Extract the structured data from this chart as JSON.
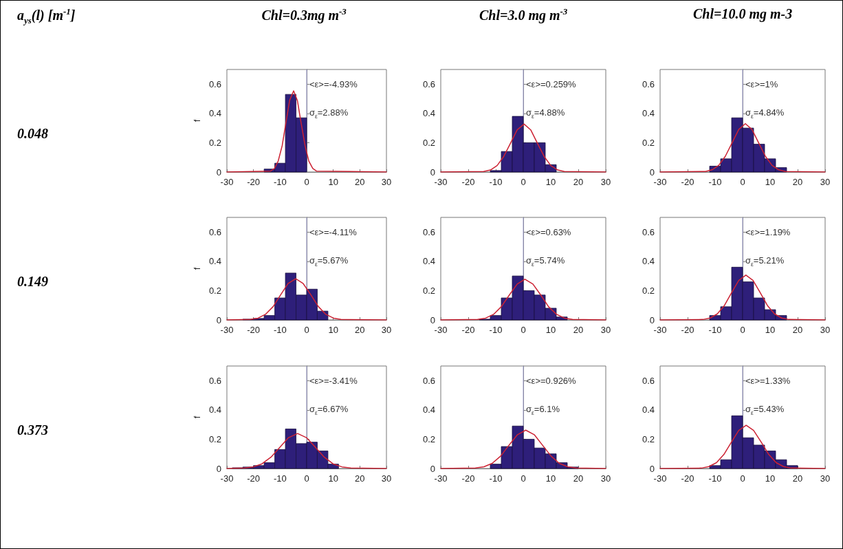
{
  "chart_data": [
    {
      "type": "other",
      "title": "a$_{ys}$(l) [m$^{-1}$]"
    },
    {
      "type": "histogram",
      "title": "Chl=0.3mg m$^{-3}$",
      "ylabel": "f",
      "annotations": [
        "<ε>=-4.93%",
        "σ$_{ε}$=2.88%",
        "0.048"
      ],
      "xlim": [
        -30,
        30
      ],
      "xticks": [
        -30,
        -20,
        -10,
        0,
        10,
        20,
        30
      ],
      "ylim": [
        0,
        0.7
      ],
      "yticks": [
        0,
        0.2,
        0.4,
        0.6
      ],
      "ref_lines": [
        {
          "axis": "x",
          "value": 0,
          "color": "#9a9acc"
        }
      ],
      "series": [
        {
          "type": "histogram",
          "color": "#2e1f7a",
          "bins": [
            -16,
            -12,
            -8,
            -4,
            0
          ],
          "values": [
            0.02,
            0.06,
            0.53,
            0.37
          ]
        },
        {
          "type": "line",
          "color": "#cc2233",
          "x": [
            -30,
            -13.6,
            -12.1,
            -10.7,
            -9.2,
            -7.8,
            -6.4,
            -4.9,
            -3.5,
            -2.1,
            -0.6,
            0.8,
            2.3,
            3.7,
            30
          ],
          "values": [
            0,
            0.006,
            0.024,
            0.075,
            0.18,
            0.336,
            0.489,
            0.554,
            0.489,
            0.336,
            0.18,
            0.075,
            0.024,
            0.006,
            0
          ]
        }
      ]
    },
    {
      "type": "histogram",
      "title": "Chl=3.0 mg m$^{-3}$",
      "annotations": [
        "<ε>=0.259%",
        "σ$_{ε}$=4.88%"
      ],
      "xlim": [
        -30,
        30
      ],
      "xticks": [
        -30,
        -20,
        -10,
        0,
        10,
        20,
        30
      ],
      "ylim": [
        0,
        0.7
      ],
      "yticks": [
        0,
        0.2,
        0.4,
        0.6
      ],
      "ref_lines": [
        {
          "axis": "x",
          "value": 0,
          "color": "#9a9acc"
        }
      ],
      "series": [
        {
          "type": "histogram",
          "color": "#2e1f7a",
          "bins": [
            -12,
            -8,
            -4,
            0,
            4,
            8,
            12
          ],
          "values": [
            0.01,
            0.14,
            0.38,
            0.2,
            0.2,
            0.05
          ]
        },
        {
          "type": "line",
          "color": "#cc2233",
          "x": [
            -30,
            -14.4,
            -11.9,
            -9.5,
            -7.1,
            -4.6,
            -2.2,
            0.3,
            2.7,
            5.1,
            7.6,
            10.0,
            12.5,
            14.9,
            30
          ],
          "values": [
            0,
            0.004,
            0.014,
            0.044,
            0.106,
            0.198,
            0.288,
            0.327,
            0.288,
            0.198,
            0.106,
            0.044,
            0.014,
            0.004,
            0
          ]
        }
      ]
    },
    {
      "type": "histogram",
      "title": "Chl=10.0 mg m-3",
      "annotations": [
        "<ε>=1%",
        "σ$_{ε}$=4.84%"
      ],
      "xlim": [
        -30,
        30
      ],
      "xticks": [
        -30,
        -20,
        -10,
        0,
        10,
        20,
        30
      ],
      "ylim": [
        0,
        0.7
      ],
      "yticks": [
        0,
        0.2,
        0.4,
        0.6
      ],
      "ref_lines": [
        {
          "axis": "x",
          "value": 0,
          "color": "#9a9acc"
        }
      ],
      "series": [
        {
          "type": "histogram",
          "color": "#2e1f7a",
          "bins": [
            -12,
            -8,
            -4,
            0,
            4,
            8,
            12,
            16
          ],
          "values": [
            0.04,
            0.09,
            0.37,
            0.3,
            0.19,
            0.09,
            0.03
          ]
        },
        {
          "type": "line",
          "color": "#cc2233",
          "x": [
            -30,
            -13.5,
            -11.1,
            -8.7,
            -6.3,
            -3.8,
            -1.4,
            1.0,
            3.4,
            5.8,
            8.3,
            10.7,
            13.1,
            15.5,
            30
          ],
          "values": [
            0,
            0.004,
            0.015,
            0.045,
            0.107,
            0.2,
            0.291,
            0.33,
            0.291,
            0.2,
            0.107,
            0.045,
            0.015,
            0.004,
            0
          ]
        }
      ]
    },
    {
      "type": "histogram",
      "ylabel": "f",
      "annotations": [
        "<ε>=-4.11%",
        "σ$_{ε}$=5.67%",
        "0.149"
      ],
      "xlim": [
        -30,
        30
      ],
      "xticks": [
        -30,
        -20,
        -10,
        0,
        10,
        20,
        30
      ],
      "ylim": [
        0,
        0.7
      ],
      "yticks": [
        0,
        0.2,
        0.4,
        0.6
      ],
      "ref_lines": [
        {
          "axis": "x",
          "value": 0,
          "color": "#9a9acc"
        }
      ],
      "series": [
        {
          "type": "histogram",
          "color": "#2e1f7a",
          "bins": [
            -24,
            -20,
            -16,
            -12,
            -8,
            -4,
            0,
            4,
            8
          ],
          "values": [
            0.005,
            0.01,
            0.03,
            0.15,
            0.32,
            0.17,
            0.21,
            0.06
          ]
        },
        {
          "type": "line",
          "color": "#cc2233",
          "x": [
            -30,
            -21.1,
            -18.3,
            -15.5,
            -12.6,
            -9.8,
            -7.0,
            -4.1,
            -1.3,
            1.6,
            4.4,
            7.2,
            10.1,
            12.9,
            30
          ],
          "values": [
            0,
            0.003,
            0.012,
            0.038,
            0.091,
            0.171,
            0.248,
            0.281,
            0.248,
            0.171,
            0.091,
            0.038,
            0.012,
            0.003,
            0
          ]
        }
      ]
    },
    {
      "type": "histogram",
      "annotations": [
        "<ε>=0.63%",
        "σ$_{ε}$=5.74%"
      ],
      "xlim": [
        -30,
        30
      ],
      "xticks": [
        -30,
        -20,
        -10,
        0,
        10,
        20,
        30
      ],
      "ylim": [
        0,
        0.7
      ],
      "yticks": [
        0,
        0.2,
        0.4,
        0.6
      ],
      "ref_lines": [
        {
          "axis": "x",
          "value": 0,
          "color": "#9a9acc"
        }
      ],
      "series": [
        {
          "type": "histogram",
          "color": "#2e1f7a",
          "bins": [
            -16,
            -12,
            -8,
            -4,
            0,
            4,
            8,
            12,
            16
          ],
          "values": [
            0.005,
            0.03,
            0.15,
            0.3,
            0.2,
            0.17,
            0.08,
            0.02
          ]
        },
        {
          "type": "line",
          "color": "#cc2233",
          "x": [
            -30,
            -16.6,
            -13.7,
            -10.8,
            -8.0,
            -5.1,
            -2.2,
            0.6,
            3.5,
            6.4,
            9.2,
            12.1,
            15.0,
            17.9,
            30
          ],
          "values": [
            0,
            0.003,
            0.012,
            0.038,
            0.09,
            0.169,
            0.245,
            0.278,
            0.245,
            0.169,
            0.09,
            0.038,
            0.012,
            0.003,
            0
          ]
        }
      ]
    },
    {
      "type": "histogram",
      "annotations": [
        "<ε>=1.19%",
        "σ$_{ε}$=5.21%"
      ],
      "xlim": [
        -30,
        30
      ],
      "xticks": [
        -30,
        -20,
        -10,
        0,
        10,
        20,
        30
      ],
      "ylim": [
        0,
        0.7
      ],
      "yticks": [
        0,
        0.2,
        0.4,
        0.6
      ],
      "ref_lines": [
        {
          "axis": "x",
          "value": 0,
          "color": "#9a9acc"
        }
      ],
      "series": [
        {
          "type": "histogram",
          "color": "#2e1f7a",
          "bins": [
            -12,
            -8,
            -4,
            0,
            4,
            8,
            12,
            16
          ],
          "values": [
            0.03,
            0.09,
            0.36,
            0.26,
            0.15,
            0.07,
            0.03
          ]
        },
        {
          "type": "line",
          "color": "#cc2233",
          "x": [
            -30,
            -14.4,
            -11.8,
            -9.2,
            -6.6,
            -4.0,
            -1.4,
            1.2,
            3.8,
            6.4,
            9.0,
            11.6,
            14.2,
            16.8,
            30
          ],
          "values": [
            0,
            0.003,
            0.013,
            0.041,
            0.099,
            0.186,
            0.27,
            0.306,
            0.27,
            0.186,
            0.099,
            0.041,
            0.013,
            0.003,
            0
          ]
        }
      ]
    },
    {
      "type": "histogram",
      "ylabel": "f",
      "annotations": [
        "<ε>=-3.41%",
        "σ$_{ε}$=6.67%",
        "0.373"
      ],
      "xlim": [
        -30,
        30
      ],
      "xticks": [
        -30,
        -20,
        -10,
        0,
        10,
        20,
        30
      ],
      "ylim": [
        0,
        0.7
      ],
      "yticks": [
        0,
        0.2,
        0.4,
        0.6
      ],
      "ref_lines": [
        {
          "axis": "x",
          "value": 0,
          "color": "#9a9acc"
        }
      ],
      "series": [
        {
          "type": "histogram",
          "color": "#2e1f7a",
          "bins": [
            -28,
            -24,
            -20,
            -16,
            -12,
            -8,
            -4,
            0,
            4,
            8,
            12
          ],
          "values": [
            0.005,
            0.01,
            0.02,
            0.04,
            0.13,
            0.27,
            0.17,
            0.18,
            0.12,
            0.03
          ]
        },
        {
          "type": "line",
          "color": "#cc2233",
          "x": [
            -30,
            -23.4,
            -20.1,
            -16.8,
            -13.4,
            -10.1,
            -6.8,
            -3.4,
            -0.1,
            3.3,
            6.6,
            9.9,
            13.3,
            16.6,
            30
          ],
          "values": [
            0,
            0.003,
            0.011,
            0.032,
            0.078,
            0.145,
            0.211,
            0.239,
            0.211,
            0.145,
            0.078,
            0.032,
            0.011,
            0.003,
            0
          ]
        }
      ]
    },
    {
      "type": "histogram",
      "annotations": [
        "<ε>=0.926%",
        "σ$_{ε}$=6.1%"
      ],
      "xlim": [
        -30,
        30
      ],
      "xticks": [
        -30,
        -20,
        -10,
        0,
        10,
        20,
        30
      ],
      "ylim": [
        0,
        0.7
      ],
      "yticks": [
        0,
        0.2,
        0.4,
        0.6
      ],
      "ref_lines": [
        {
          "axis": "x",
          "value": 0,
          "color": "#9a9acc"
        }
      ],
      "series": [
        {
          "type": "histogram",
          "color": "#2e1f7a",
          "bins": [
            -12,
            -8,
            -4,
            0,
            4,
            8,
            12,
            16,
            20
          ],
          "values": [
            0.03,
            0.15,
            0.29,
            0.2,
            0.14,
            0.1,
            0.04,
            0.01
          ]
        },
        {
          "type": "line",
          "color": "#cc2233",
          "x": [
            -30,
            -17.4,
            -14.3,
            -11.3,
            -8.2,
            -5.2,
            -2.1,
            0.9,
            4.0,
            7.0,
            10.1,
            13.1,
            16.2,
            19.2,
            30
          ],
          "values": [
            0,
            0.003,
            0.012,
            0.035,
            0.085,
            0.159,
            0.231,
            0.262,
            0.231,
            0.159,
            0.085,
            0.035,
            0.012,
            0.003,
            0
          ]
        }
      ]
    },
    {
      "type": "histogram",
      "annotations": [
        "<ε>=1.33%",
        "σ$_{ε}$=5.43%"
      ],
      "xlim": [
        -30,
        30
      ],
      "xticks": [
        -30,
        -20,
        -10,
        0,
        10,
        20,
        30
      ],
      "ylim": [
        0,
        0.7
      ],
      "yticks": [
        0,
        0.2,
        0.4,
        0.6
      ],
      "ref_lines": [
        {
          "axis": "x",
          "value": 0,
          "color": "#9a9acc"
        }
      ],
      "series": [
        {
          "type": "histogram",
          "color": "#2e1f7a",
          "bins": [
            -12,
            -8,
            -4,
            0,
            4,
            8,
            12,
            16,
            20
          ],
          "values": [
            0.02,
            0.06,
            0.36,
            0.21,
            0.16,
            0.12,
            0.06,
            0.02
          ]
        },
        {
          "type": "line",
          "color": "#cc2233",
          "x": [
            -30,
            -15.0,
            -12.3,
            -9.5,
            -6.8,
            -4.1,
            -1.4,
            1.3,
            4.0,
            6.8,
            9.5,
            12.2,
            14.9,
            17.6,
            30
          ],
          "values": [
            0,
            0.003,
            0.013,
            0.04,
            0.096,
            0.179,
            0.26,
            0.295,
            0.26,
            0.179,
            0.096,
            0.04,
            0.013,
            0.003,
            0
          ]
        }
      ]
    }
  ]
}
